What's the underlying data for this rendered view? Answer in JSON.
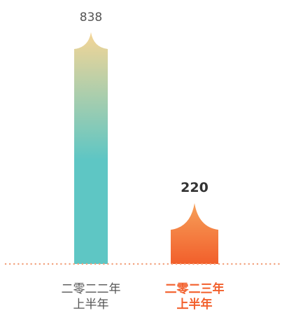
{
  "chart_data": {
    "type": "bar",
    "title": "",
    "xlabel": "",
    "ylabel": "",
    "ylim": [
      0,
      838
    ],
    "grid": false,
    "legend": "none",
    "categories": [
      "二零二二年\n上半年",
      "二零二三年\n上半年"
    ],
    "values": [
      838,
      220
    ],
    "value_labels": [
      "838",
      "220"
    ],
    "highlight_index": 1,
    "colors": {
      "bar1_top": "#f5d596",
      "bar1_bottom": "#5ec6c4",
      "bar2_top": "#f6a05a",
      "bar2_bottom": "#f25f2b",
      "baseline": "#f2a07b",
      "label_default": "#555555",
      "label_highlight": "#f25f2b",
      "value_default": "#555555",
      "value_highlight": "#333333"
    }
  }
}
